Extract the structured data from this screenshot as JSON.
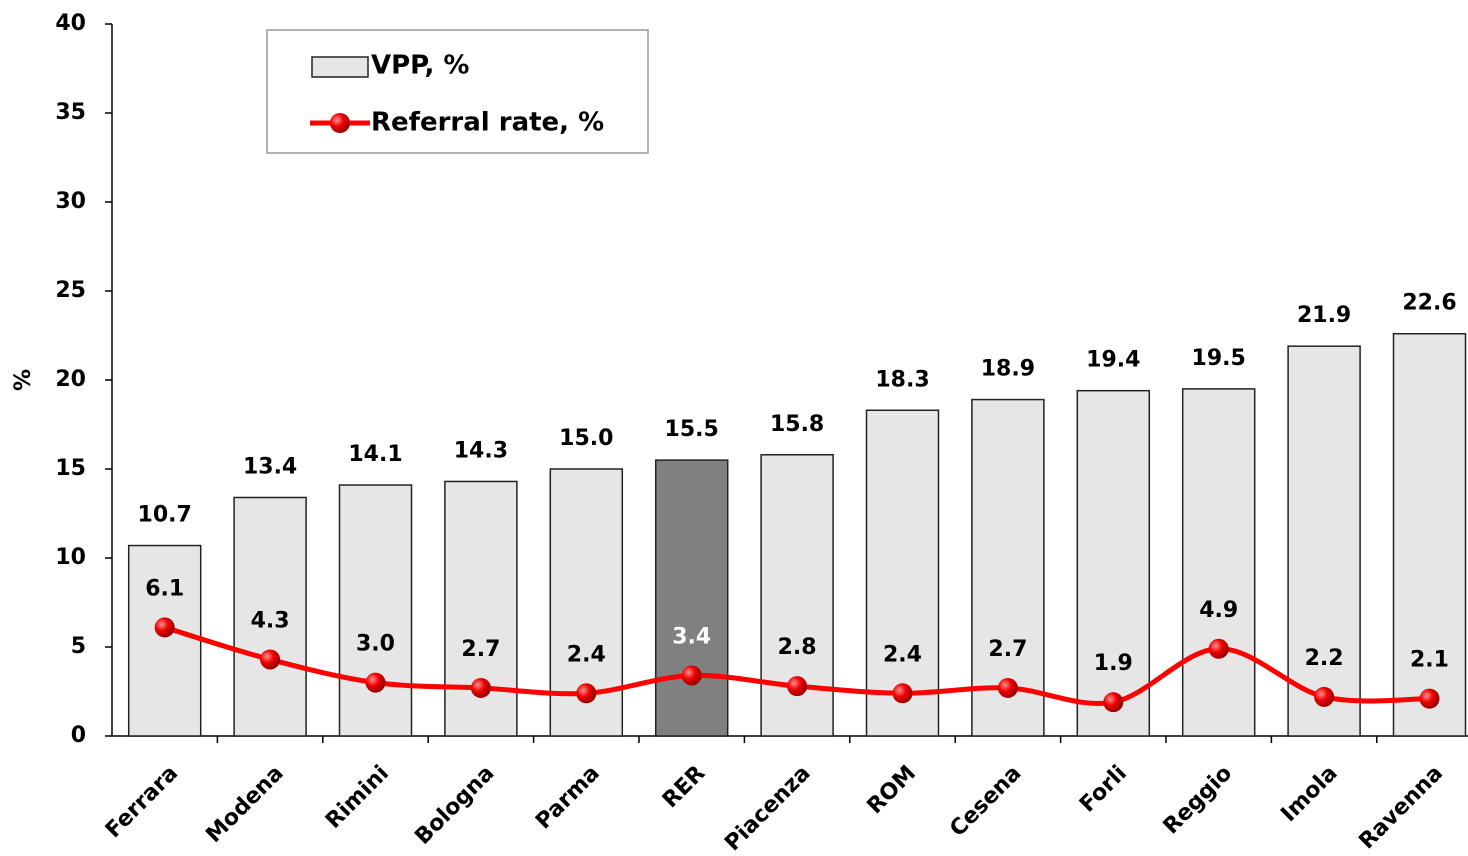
{
  "chart_data": {
    "type": "bar_line",
    "categories": [
      "Ferrara",
      "Modena",
      "Rimini",
      "Bologna",
      "Parma",
      "RER",
      "Piacenza",
      "ROM",
      "Cesena",
      "Forli",
      "Reggio",
      "Imola",
      "Ravenna"
    ],
    "series": [
      {
        "name": "VPP, %",
        "type": "bar",
        "color": "#e6e6e6",
        "colors": [
          "#e6e6e6",
          "#e6e6e6",
          "#e6e6e6",
          "#e6e6e6",
          "#e6e6e6",
          "#808080",
          "#e6e6e6",
          "#e6e6e6",
          "#e6e6e6",
          "#e6e6e6",
          "#e6e6e6",
          "#e6e6e6",
          "#e6e6e6"
        ],
        "values": [
          10.7,
          13.4,
          14.1,
          14.3,
          15.0,
          15.5,
          15.8,
          18.3,
          18.9,
          19.4,
          19.5,
          21.9,
          22.6
        ],
        "value_labels": [
          "10.7",
          "13.4",
          "14.1",
          "14.3",
          "15.0",
          "15.5",
          "15.8",
          "18.3",
          "18.9",
          "19.4",
          "19.5",
          "21.9",
          "22.6"
        ]
      },
      {
        "name": "Referral rate, %",
        "type": "line",
        "color": "#ff0000",
        "label_colors": [
          "#000000",
          "#000000",
          "#000000",
          "#000000",
          "#000000",
          "#ffffff",
          "#000000",
          "#000000",
          "#000000",
          "#000000",
          "#000000",
          "#000000",
          "#000000"
        ],
        "values": [
          6.1,
          4.3,
          3.0,
          2.7,
          2.4,
          3.4,
          2.8,
          2.4,
          2.7,
          1.9,
          4.9,
          2.2,
          2.1
        ],
        "value_labels": [
          "6.1",
          "4.3",
          "3.0",
          "2.7",
          "2.4",
          "3.4",
          "2.8",
          "2.4",
          "2.7",
          "1.9",
          "4.9",
          "2.2",
          "2.1"
        ]
      }
    ],
    "y_label": "%",
    "ylim": [
      0,
      40
    ],
    "yticks": [
      0,
      5,
      10,
      15,
      20,
      25,
      30,
      35,
      40
    ],
    "legend": "top-left",
    "grid": false
  }
}
